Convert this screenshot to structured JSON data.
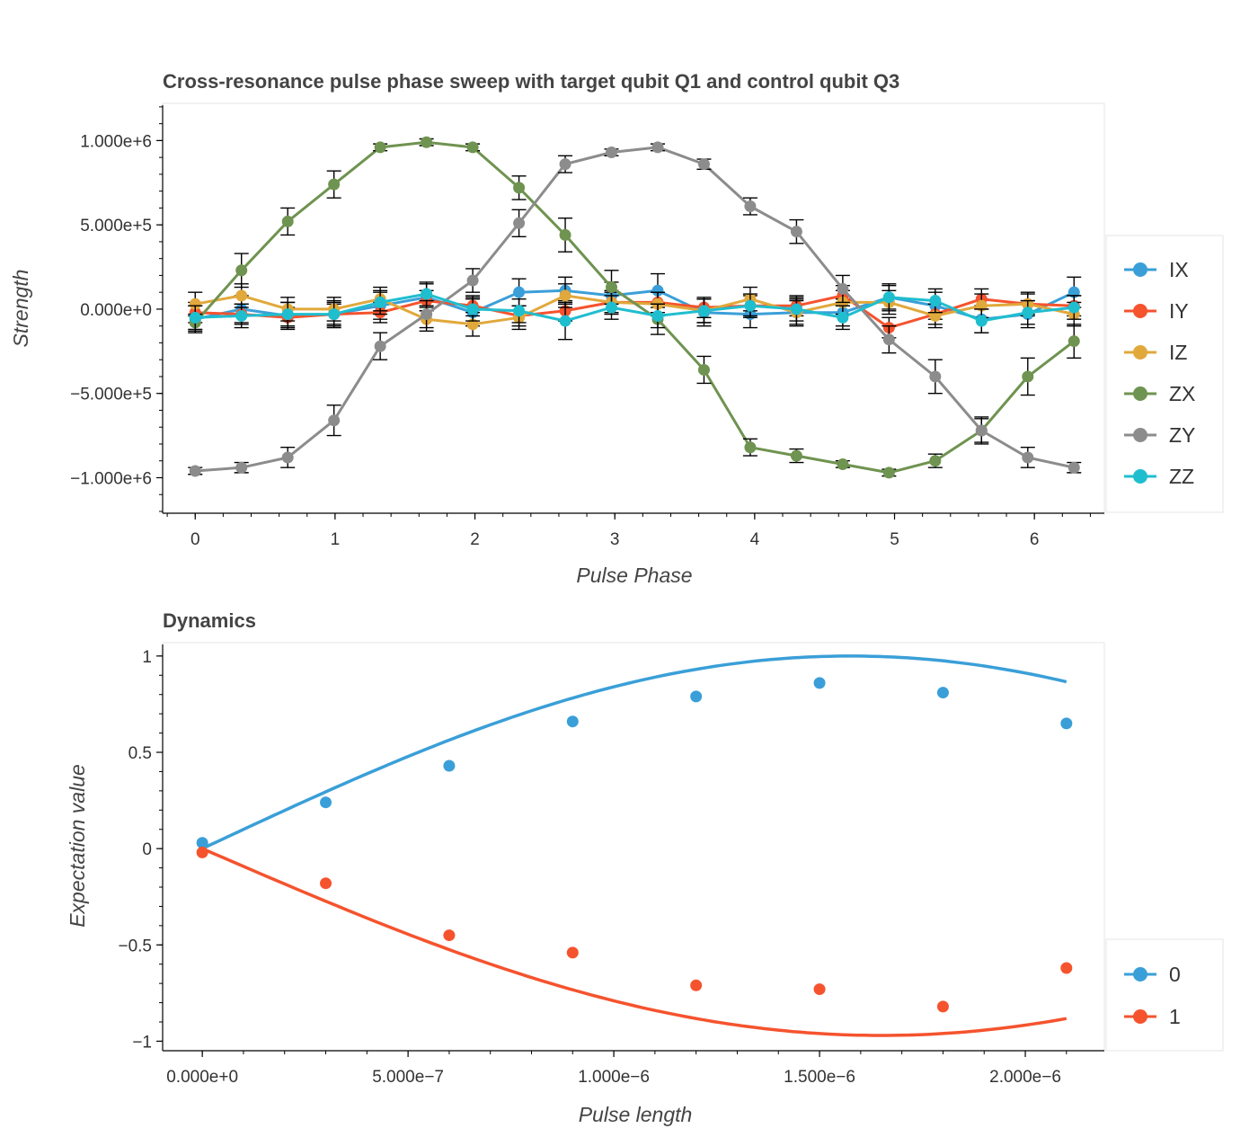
{
  "chart_data": [
    {
      "type": "line",
      "title": "Cross-resonance pulse phase sweep with target qubit Q1 and control qubit Q3",
      "xlabel": "Pulse Phase",
      "ylabel": "Strength",
      "xlim": [
        -0.22,
        6.5
      ],
      "ylim": [
        -1200000,
        1210000
      ],
      "x_ticks": [
        0,
        1,
        2,
        3,
        4,
        5,
        6
      ],
      "x_tick_labels": [
        "0",
        "1",
        "2",
        "3",
        "4",
        "5",
        "6"
      ],
      "y_ticks": [
        1000000,
        500000,
        0,
        -500000,
        -1000000
      ],
      "y_tick_labels": [
        "1.000e+6",
        "5.000e+5",
        "0.000e+0",
        "−5.000e+5",
        "−1.000e+6"
      ],
      "legend_position": "right",
      "error_bars": true,
      "x": [
        0,
        0.3307,
        0.6614,
        0.9921,
        1.3228,
        1.6535,
        1.9842,
        2.3149,
        2.6456,
        2.9762,
        3.3069,
        3.6376,
        3.9683,
        4.299,
        4.6297,
        4.9604,
        5.2911,
        5.6218,
        5.9525,
        6.2832
      ],
      "series": [
        {
          "name": "IX",
          "color": "#3a9fd8",
          "values": [
            -60000,
            0,
            -40000,
            -30000,
            20000,
            70000,
            -20000,
            100000,
            110000,
            80000,
            110000,
            -20000,
            -30000,
            -20000,
            -20000,
            70000,
            20000,
            -60000,
            -30000,
            100000
          ],
          "errors": [
            80000,
            80000,
            80000,
            80000,
            80000,
            80000,
            80000,
            80000,
            80000,
            80000,
            100000,
            80000,
            80000,
            80000,
            80000,
            80000,
            80000,
            80000,
            80000,
            90000
          ]
        },
        {
          "name": "IY",
          "color": "#f5532e",
          "values": [
            -20000,
            -30000,
            -50000,
            -30000,
            -20000,
            50000,
            20000,
            -40000,
            -10000,
            40000,
            40000,
            10000,
            20000,
            20000,
            80000,
            -110000,
            -30000,
            60000,
            30000,
            20000
          ],
          "errors": [
            60000,
            60000,
            60000,
            60000,
            60000,
            60000,
            60000,
            60000,
            60000,
            60000,
            60000,
            60000,
            60000,
            60000,
            60000,
            60000,
            60000,
            60000,
            60000,
            60000
          ]
        },
        {
          "name": "IZ",
          "color": "#e1a83b",
          "values": [
            30000,
            80000,
            0,
            0,
            60000,
            -60000,
            -90000,
            -50000,
            80000,
            40000,
            30000,
            -10000,
            60000,
            -20000,
            40000,
            40000,
            -40000,
            20000,
            30000,
            -30000
          ],
          "errors": [
            70000,
            70000,
            70000,
            70000,
            70000,
            70000,
            70000,
            70000,
            70000,
            70000,
            70000,
            70000,
            70000,
            70000,
            70000,
            70000,
            70000,
            70000,
            70000,
            70000
          ]
        },
        {
          "name": "ZX",
          "color": "#6f9350",
          "values": [
            -80000,
            230000,
            520000,
            740000,
            960000,
            990000,
            960000,
            720000,
            440000,
            130000,
            -60000,
            -360000,
            -820000,
            -870000,
            -920000,
            -970000,
            -900000,
            -720000,
            -400000,
            -190000
          ],
          "errors": [
            50000,
            100000,
            80000,
            80000,
            20000,
            20000,
            20000,
            70000,
            100000,
            100000,
            90000,
            80000,
            50000,
            40000,
            20000,
            20000,
            40000,
            70000,
            110000,
            100000
          ]
        },
        {
          "name": "ZY",
          "color": "#8c8c8c",
          "values": [
            -960000,
            -940000,
            -880000,
            -660000,
            -220000,
            -30000,
            170000,
            510000,
            860000,
            930000,
            960000,
            860000,
            610000,
            460000,
            120000,
            -180000,
            -400000,
            -720000,
            -880000,
            -940000
          ],
          "errors": [
            20000,
            30000,
            60000,
            90000,
            80000,
            80000,
            70000,
            80000,
            50000,
            20000,
            20000,
            30000,
            50000,
            70000,
            80000,
            80000,
            100000,
            80000,
            60000,
            30000
          ]
        },
        {
          "name": "ZZ",
          "color": "#1fbecf",
          "values": [
            -50000,
            -40000,
            -30000,
            -30000,
            40000,
            90000,
            0,
            -10000,
            -70000,
            10000,
            -40000,
            -10000,
            20000,
            0,
            -50000,
            70000,
            50000,
            -70000,
            -20000,
            10000
          ],
          "errors": [
            70000,
            70000,
            70000,
            70000,
            70000,
            70000,
            70000,
            70000,
            110000,
            70000,
            70000,
            70000,
            70000,
            70000,
            70000,
            70000,
            70000,
            70000,
            70000,
            70000
          ]
        }
      ]
    },
    {
      "type": "scatter",
      "title": "Dynamics",
      "xlabel": "Pulse length",
      "ylabel": "Expectation value",
      "xlim": [
        -9.2e-08,
        2.1921e-06
      ],
      "ylim": [
        -1.04,
        1.06
      ],
      "x_ticks": [
        0,
        5e-07,
        1e-06,
        1.5e-06,
        2e-06
      ],
      "x_tick_labels": [
        "0.000e+0",
        "5.000e−7",
        "1.000e−6",
        "1.500e−6",
        "2.000e−6"
      ],
      "y_ticks": [
        1,
        0.5,
        0,
        -0.5,
        -1
      ],
      "y_tick_labels": [
        "1",
        "0.5",
        "0",
        "−0.5",
        "−1"
      ],
      "legend_position": "bottom-right",
      "x": [
        0,
        3e-07,
        6e-07,
        9e-07,
        1.2e-06,
        1.5e-06,
        1.8e-06,
        2.1e-06
      ],
      "series": [
        {
          "name": "0",
          "color": "#3a9fd8",
          "values": [
            0.03,
            0.24,
            0.43,
            0.66,
            0.79,
            0.86,
            0.81,
            0.65
          ],
          "fit": {
            "amplitude": 1.0,
            "period": 6.3e-06
          }
        },
        {
          "name": "1",
          "color": "#f5532e",
          "values": [
            -0.02,
            -0.18,
            -0.45,
            -0.54,
            -0.71,
            -0.73,
            -0.82,
            -0.62
          ],
          "fit": {
            "amplitude": -0.97,
            "period": 6.6e-06
          }
        }
      ]
    }
  ]
}
